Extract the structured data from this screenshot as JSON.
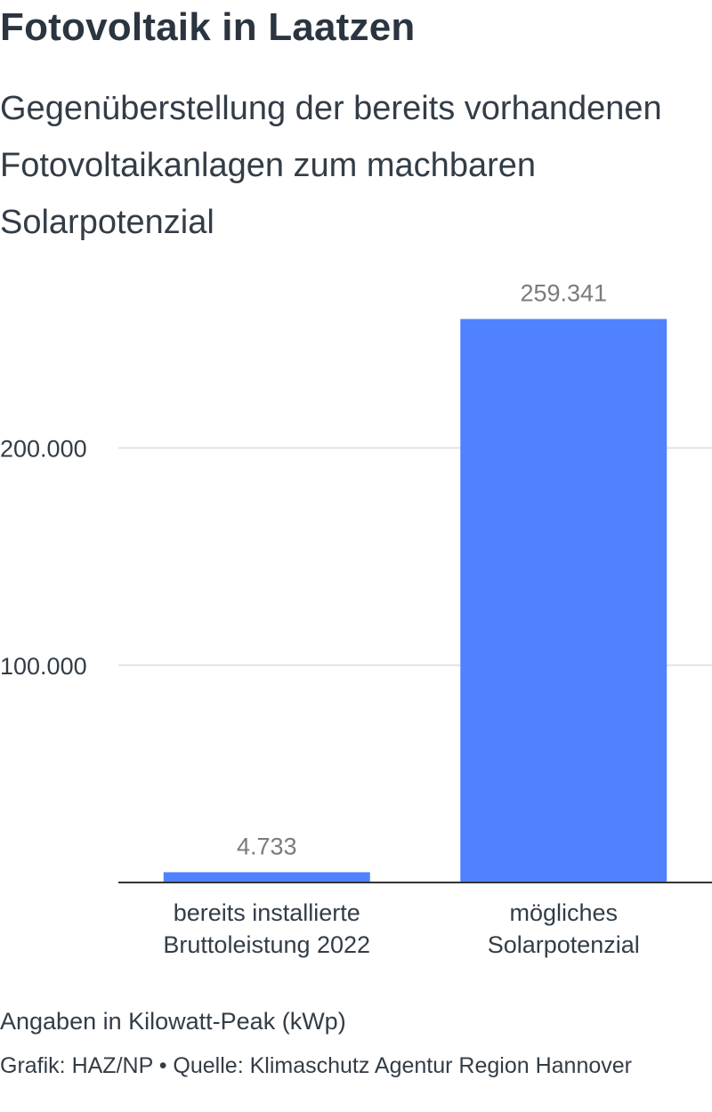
{
  "header": {
    "title": "Fotovoltaik in Laatzen",
    "subtitle": "Gegenüberstellung der bereits vorhandenen Fotovoltaikanlagen zum machbaren Solarpotenzial"
  },
  "chart_data": {
    "type": "bar",
    "categories": [
      [
        "bereits installierte",
        "Bruttoleistung 2022"
      ],
      [
        "mögliches",
        "Solarpotenzial"
      ]
    ],
    "values": [
      4733,
      259341
    ],
    "value_labels": [
      "4.733",
      "259.341"
    ],
    "y_ticks": [
      100000,
      200000
    ],
    "y_tick_labels": [
      "100.000",
      "200.000"
    ],
    "ylim": [
      0,
      260000
    ],
    "grid": true,
    "bar_color": "#5082ff",
    "title": "",
    "xlabel": "",
    "ylabel": ""
  },
  "footer": {
    "note": "Angaben in Kilowatt-Peak (kWp)",
    "source": "Grafik: HAZ/NP • Quelle: Klimaschutz Agentur Region Hannover"
  }
}
